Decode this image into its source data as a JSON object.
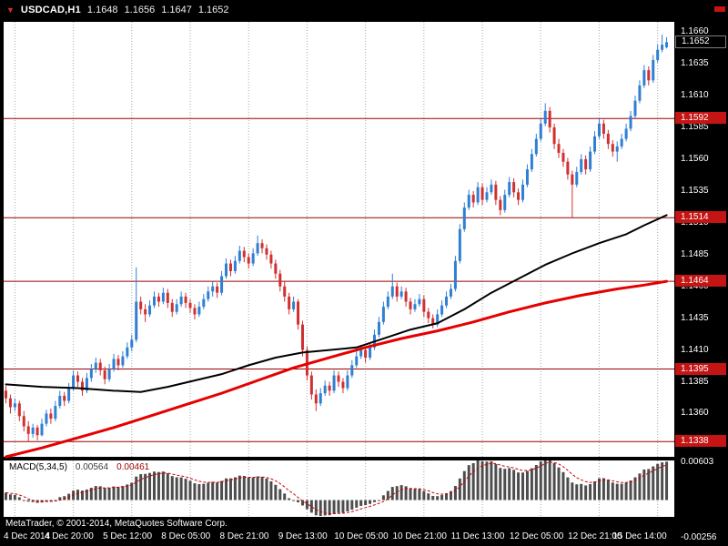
{
  "header": {
    "marker": "▼",
    "symbol": "USDCAD,H1",
    "open": "1.1648",
    "high": "1.1656",
    "low": "1.1647",
    "close": "1.1652"
  },
  "footer": {
    "copyright": "MetaTrader, © 2001-2014, MetaQuotes Software Corp."
  },
  "colors": {
    "background": "#000000",
    "panel": "#ffffff",
    "text": "#ffffff",
    "up": "#2f7fd2",
    "down": "#d03030",
    "grid": "#a8a8a8",
    "level_line": "#990000",
    "level_box": "#c41414",
    "ma_black": "#000000",
    "ma_red": "#e60000",
    "macd_bar": "#4d4d4d",
    "macd_signal": "#cc0000"
  },
  "chart_data": {
    "type": "candlestick",
    "title": "USDCAD,H1",
    "ylim": [
      1.1326,
      1.1668
    ],
    "price_ticks": [
      "1.1660",
      "1.1635",
      "1.1610",
      "1.1585",
      "1.1560",
      "1.1535",
      "1.1510",
      "1.1485",
      "1.1460",
      "1.1435",
      "1.1410",
      "1.1385",
      "1.1360"
    ],
    "levels": [
      {
        "price": 1.1592,
        "label": "1.1592"
      },
      {
        "price": 1.1514,
        "label": "1.1514"
      },
      {
        "price": 1.1464,
        "label": "1.1464"
      },
      {
        "price": 1.1395,
        "label": "1.1395"
      },
      {
        "price": 1.1338,
        "label": "1.1338"
      }
    ],
    "last_price": {
      "price": 1.1652,
      "label": "1.1652"
    },
    "time_ticks": [
      {
        "i": 2,
        "label": "4 Dec 2014"
      },
      {
        "i": 15,
        "label": "4 Dec 20:00"
      },
      {
        "i": 28,
        "label": "5 Dec 12:00"
      },
      {
        "i": 41,
        "label": "8 Dec 05:00"
      },
      {
        "i": 54,
        "label": "8 Dec 21:00"
      },
      {
        "i": 67,
        "label": "9 Dec 13:00"
      },
      {
        "i": 80,
        "label": "10 Dec 05:00"
      },
      {
        "i": 93,
        "label": "10 Dec 21:00"
      },
      {
        "i": 106,
        "label": "11 Dec 13:00"
      },
      {
        "i": 119,
        "label": "12 Dec 05:00"
      },
      {
        "i": 132,
        "label": "12 Dec 21:00"
      },
      {
        "i": 145,
        "label": "15 Dec 14:00"
      }
    ],
    "candles": [
      [
        1.1378,
        1.1382,
        1.1368,
        1.1372
      ],
      [
        1.1372,
        1.1375,
        1.136,
        1.1365
      ],
      [
        1.1365,
        1.1372,
        1.1362,
        1.1368
      ],
      [
        1.1368,
        1.137,
        1.1354,
        1.1358
      ],
      [
        1.1358,
        1.1362,
        1.1346,
        1.135
      ],
      [
        1.135,
        1.1354,
        1.1338,
        1.1344
      ],
      [
        1.1344,
        1.1352,
        1.1341,
        1.1349
      ],
      [
        1.1349,
        1.1351,
        1.1339,
        1.1343
      ],
      [
        1.1343,
        1.1356,
        1.1342,
        1.1352
      ],
      [
        1.1352,
        1.1363,
        1.135,
        1.136
      ],
      [
        1.136,
        1.1364,
        1.1352,
        1.1356
      ],
      [
        1.1356,
        1.137,
        1.1354,
        1.1366
      ],
      [
        1.1366,
        1.1378,
        1.1364,
        1.1374
      ],
      [
        1.1374,
        1.1377,
        1.1366,
        1.137
      ],
      [
        1.137,
        1.1384,
        1.1368,
        1.138
      ],
      [
        1.138,
        1.1394,
        1.1378,
        1.139
      ],
      [
        1.139,
        1.1393,
        1.1381,
        1.1385
      ],
      [
        1.1385,
        1.1388,
        1.1374,
        1.1378
      ],
      [
        1.1378,
        1.1392,
        1.1376,
        1.1388
      ],
      [
        1.1388,
        1.1399,
        1.1385,
        1.1395
      ],
      [
        1.1395,
        1.1404,
        1.1392,
        1.14
      ],
      [
        1.14,
        1.1403,
        1.139,
        1.1394
      ],
      [
        1.1394,
        1.1397,
        1.1383,
        1.1387
      ],
      [
        1.1387,
        1.1399,
        1.1385,
        1.1395
      ],
      [
        1.1395,
        1.1407,
        1.1393,
        1.1403
      ],
      [
        1.1403,
        1.1406,
        1.1394,
        1.1398
      ],
      [
        1.1398,
        1.1409,
        1.1396,
        1.1405
      ],
      [
        1.1405,
        1.1416,
        1.1403,
        1.1412
      ],
      [
        1.1412,
        1.1422,
        1.1409,
        1.1418
      ],
      [
        1.1418,
        1.1475,
        1.1416,
        1.1448
      ],
      [
        1.1448,
        1.1452,
        1.1438,
        1.1442
      ],
      [
        1.1442,
        1.1446,
        1.1432,
        1.1438
      ],
      [
        1.1438,
        1.1449,
        1.1436,
        1.1445
      ],
      [
        1.1445,
        1.1456,
        1.1443,
        1.1452
      ],
      [
        1.1452,
        1.1455,
        1.1444,
        1.1448
      ],
      [
        1.1448,
        1.1459,
        1.1446,
        1.1455
      ],
      [
        1.1455,
        1.1458,
        1.1443,
        1.1447
      ],
      [
        1.1447,
        1.145,
        1.1436,
        1.144
      ],
      [
        1.144,
        1.145,
        1.1438,
        1.1446
      ],
      [
        1.1446,
        1.1456,
        1.1444,
        1.1452
      ],
      [
        1.1452,
        1.1455,
        1.1443,
        1.1447
      ],
      [
        1.1447,
        1.145,
        1.1439,
        1.1443
      ],
      [
        1.1443,
        1.1446,
        1.1434,
        1.1438
      ],
      [
        1.1438,
        1.1448,
        1.1436,
        1.1444
      ],
      [
        1.1444,
        1.1454,
        1.1442,
        1.145
      ],
      [
        1.145,
        1.146,
        1.1448,
        1.1456
      ],
      [
        1.1456,
        1.1464,
        1.1452,
        1.146
      ],
      [
        1.146,
        1.1463,
        1.1451,
        1.1455
      ],
      [
        1.1455,
        1.1472,
        1.1453,
        1.1468
      ],
      [
        1.1468,
        1.1482,
        1.1466,
        1.1478
      ],
      [
        1.1478,
        1.1481,
        1.1468,
        1.1472
      ],
      [
        1.1472,
        1.1484,
        1.147,
        1.148
      ],
      [
        1.148,
        1.1492,
        1.1478,
        1.1488
      ],
      [
        1.1488,
        1.1491,
        1.1479,
        1.1483
      ],
      [
        1.1483,
        1.1486,
        1.1474,
        1.1478
      ],
      [
        1.1478,
        1.149,
        1.1476,
        1.1486
      ],
      [
        1.1486,
        1.15,
        1.1484,
        1.1494
      ],
      [
        1.1494,
        1.1497,
        1.1486,
        1.149
      ],
      [
        1.149,
        1.1493,
        1.1481,
        1.1485
      ],
      [
        1.1485,
        1.1488,
        1.1474,
        1.1478
      ],
      [
        1.1478,
        1.1481,
        1.1466,
        1.147
      ],
      [
        1.147,
        1.1473,
        1.1456,
        1.146
      ],
      [
        1.146,
        1.1464,
        1.1448,
        1.1452
      ],
      [
        1.1452,
        1.1455,
        1.1438,
        1.1442
      ],
      [
        1.1442,
        1.1452,
        1.144,
        1.1448
      ],
      [
        1.1448,
        1.145,
        1.1426,
        1.143
      ],
      [
        1.143,
        1.1433,
        1.1405,
        1.141
      ],
      [
        1.141,
        1.1413,
        1.1386,
        1.139
      ],
      [
        1.139,
        1.1393,
        1.1371,
        1.1375
      ],
      [
        1.1375,
        1.1379,
        1.1362,
        1.1368
      ],
      [
        1.1368,
        1.138,
        1.1366,
        1.1376
      ],
      [
        1.1376,
        1.1386,
        1.1374,
        1.1382
      ],
      [
        1.1382,
        1.1385,
        1.1374,
        1.1378
      ],
      [
        1.1378,
        1.1394,
        1.1376,
        1.139
      ],
      [
        1.139,
        1.1393,
        1.1381,
        1.1385
      ],
      [
        1.1385,
        1.1388,
        1.1376,
        1.138
      ],
      [
        1.138,
        1.1394,
        1.1378,
        1.139
      ],
      [
        1.139,
        1.1402,
        1.1388,
        1.1398
      ],
      [
        1.1398,
        1.1409,
        1.1396,
        1.1405
      ],
      [
        1.1405,
        1.1414,
        1.1403,
        1.141
      ],
      [
        1.141,
        1.1413,
        1.14,
        1.1404
      ],
      [
        1.1404,
        1.1416,
        1.1402,
        1.1412
      ],
      [
        1.1412,
        1.1426,
        1.141,
        1.1422
      ],
      [
        1.1422,
        1.1436,
        1.142,
        1.1432
      ],
      [
        1.1432,
        1.1448,
        1.143,
        1.1444
      ],
      [
        1.1444,
        1.1456,
        1.1442,
        1.1452
      ],
      [
        1.1452,
        1.147,
        1.145,
        1.146
      ],
      [
        1.146,
        1.1463,
        1.1448,
        1.1452
      ],
      [
        1.1452,
        1.146,
        1.145,
        1.1456
      ],
      [
        1.1456,
        1.1459,
        1.1444,
        1.1448
      ],
      [
        1.1448,
        1.1451,
        1.1438,
        1.1442
      ],
      [
        1.1442,
        1.145,
        1.144,
        1.1446
      ],
      [
        1.1446,
        1.1454,
        1.1444,
        1.145
      ],
      [
        1.145,
        1.1453,
        1.1436,
        1.144
      ],
      [
        1.144,
        1.1443,
        1.1431,
        1.1435
      ],
      [
        1.1435,
        1.1438,
        1.1427,
        1.143
      ],
      [
        1.143,
        1.1442,
        1.1428,
        1.1438
      ],
      [
        1.1438,
        1.1449,
        1.1436,
        1.1445
      ],
      [
        1.1445,
        1.1456,
        1.1443,
        1.1452
      ],
      [
        1.1452,
        1.1462,
        1.145,
        1.1458
      ],
      [
        1.1458,
        1.1484,
        1.1456,
        1.148
      ],
      [
        1.148,
        1.1509,
        1.1478,
        1.1505
      ],
      [
        1.1505,
        1.1526,
        1.1503,
        1.1522
      ],
      [
        1.1522,
        1.1536,
        1.152,
        1.1532
      ],
      [
        1.1532,
        1.1535,
        1.1522,
        1.1526
      ],
      [
        1.1526,
        1.1542,
        1.1524,
        1.1538
      ],
      [
        1.1538,
        1.1541,
        1.1524,
        1.1528
      ],
      [
        1.1528,
        1.1538,
        1.1526,
        1.1534
      ],
      [
        1.1534,
        1.1544,
        1.1532,
        1.154
      ],
      [
        1.154,
        1.1543,
        1.1524,
        1.1528
      ],
      [
        1.1528,
        1.1531,
        1.1516,
        1.152
      ],
      [
        1.152,
        1.1536,
        1.1518,
        1.1532
      ],
      [
        1.1532,
        1.1546,
        1.153,
        1.1542
      ],
      [
        1.1542,
        1.1545,
        1.153,
        1.1534
      ],
      [
        1.1534,
        1.1537,
        1.1524,
        1.1528
      ],
      [
        1.1528,
        1.1544,
        1.1526,
        1.154
      ],
      [
        1.154,
        1.1556,
        1.1538,
        1.1552
      ],
      [
        1.1552,
        1.1568,
        1.155,
        1.1564
      ],
      [
        1.1564,
        1.158,
        1.1562,
        1.1576
      ],
      [
        1.1576,
        1.1592,
        1.1574,
        1.1588
      ],
      [
        1.1588,
        1.1604,
        1.1586,
        1.1598
      ],
      [
        1.1598,
        1.1601,
        1.1581,
        1.1585
      ],
      [
        1.1585,
        1.1588,
        1.1568,
        1.1572
      ],
      [
        1.1572,
        1.1576,
        1.1561,
        1.1565
      ],
      [
        1.1565,
        1.1568,
        1.1554,
        1.1558
      ],
      [
        1.1558,
        1.1561,
        1.1544,
        1.1548
      ],
      [
        1.1548,
        1.1551,
        1.1514,
        1.154
      ],
      [
        1.154,
        1.1554,
        1.1538,
        1.155
      ],
      [
        1.155,
        1.1564,
        1.1548,
        1.156
      ],
      [
        1.156,
        1.1563,
        1.1548,
        1.1552
      ],
      [
        1.1552,
        1.157,
        1.155,
        1.1566
      ],
      [
        1.1566,
        1.1582,
        1.1564,
        1.1578
      ],
      [
        1.1578,
        1.1592,
        1.1576,
        1.1588
      ],
      [
        1.1588,
        1.1591,
        1.1576,
        1.158
      ],
      [
        1.158,
        1.1583,
        1.1568,
        1.1572
      ],
      [
        1.1572,
        1.1575,
        1.1562,
        1.1566
      ],
      [
        1.1566,
        1.1574,
        1.1558,
        1.157
      ],
      [
        1.157,
        1.158,
        1.1568,
        1.1576
      ],
      [
        1.1576,
        1.1588,
        1.1574,
        1.1584
      ],
      [
        1.1584,
        1.1598,
        1.1582,
        1.1594
      ],
      [
        1.1594,
        1.161,
        1.1592,
        1.1606
      ],
      [
        1.1606,
        1.1622,
        1.1604,
        1.1618
      ],
      [
        1.1618,
        1.1634,
        1.1616,
        1.163
      ],
      [
        1.163,
        1.1633,
        1.1618,
        1.1622
      ],
      [
        1.1622,
        1.1642,
        1.162,
        1.1638
      ],
      [
        1.1638,
        1.165,
        1.1636,
        1.1646
      ],
      [
        1.1646,
        1.1658,
        1.1644,
        1.165
      ],
      [
        1.1648,
        1.1656,
        1.1647,
        1.1652
      ]
    ],
    "overlays": {
      "ma_black": {
        "name": "moving-average-black",
        "width": 2,
        "points": [
          [
            0,
            1.1383
          ],
          [
            8,
            1.1381
          ],
          [
            16,
            1.138
          ],
          [
            24,
            1.1378
          ],
          [
            30,
            1.1377
          ],
          [
            36,
            1.1381
          ],
          [
            42,
            1.1386
          ],
          [
            48,
            1.1391
          ],
          [
            54,
            1.1398
          ],
          [
            60,
            1.1404
          ],
          [
            66,
            1.1408
          ],
          [
            72,
            1.141
          ],
          [
            78,
            1.1412
          ],
          [
            84,
            1.1419
          ],
          [
            90,
            1.1426
          ],
          [
            96,
            1.1431
          ],
          [
            102,
            1.1442
          ],
          [
            108,
            1.1455
          ],
          [
            114,
            1.1466
          ],
          [
            120,
            1.1477
          ],
          [
            126,
            1.1486
          ],
          [
            132,
            1.1494
          ],
          [
            138,
            1.1501
          ],
          [
            142,
            1.1508
          ],
          [
            147,
            1.1516
          ]
        ]
      },
      "ma_red": {
        "name": "moving-average-red",
        "width": 3,
        "points": [
          [
            0,
            1.1326
          ],
          [
            8,
            1.1333
          ],
          [
            16,
            1.1341
          ],
          [
            24,
            1.1349
          ],
          [
            32,
            1.1358
          ],
          [
            40,
            1.1367
          ],
          [
            48,
            1.1376
          ],
          [
            56,
            1.1386
          ],
          [
            64,
            1.1396
          ],
          [
            72,
            1.1404
          ],
          [
            80,
            1.1412
          ],
          [
            88,
            1.1419
          ],
          [
            96,
            1.1425
          ],
          [
            104,
            1.1432
          ],
          [
            112,
            1.144
          ],
          [
            120,
            1.1447
          ],
          [
            128,
            1.1453
          ],
          [
            136,
            1.1458
          ],
          [
            142,
            1.1461
          ],
          [
            147,
            1.1464
          ]
        ]
      }
    },
    "macd": {
      "label": "MACD(5,34,5)",
      "value": "0.00564",
      "signal_value": "0.00461",
      "params": {
        "fast": 5,
        "slow": 34,
        "signal": 5
      },
      "ylim": [
        -0.00256,
        0.00603
      ],
      "axis_max": "0.00603",
      "axis_min": "-0.00256"
    }
  }
}
